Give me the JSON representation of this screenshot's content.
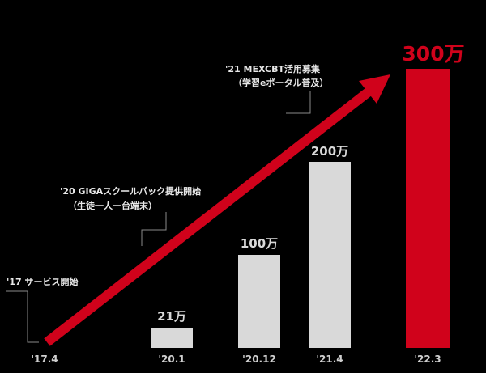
{
  "colors": {
    "background": "#000000",
    "bar": "#d9d9d9",
    "highlight": "#d0021b",
    "text": "#e8e8e8",
    "label": "#cfcfcf"
  },
  "chart_data": {
    "type": "bar",
    "categories": [
      "'17.4",
      "'20.1",
      "'20.12",
      "'21.4",
      "'22.3"
    ],
    "values": [
      0,
      21,
      100,
      200,
      300
    ],
    "value_labels": [
      "",
      "21万",
      "100万",
      "200万",
      "300万"
    ],
    "highlight_index": 4,
    "ylim": [
      0,
      300
    ],
    "grid": false,
    "trend_arrow": true,
    "annotations": [
      {
        "lines": [
          "'17 サービス開始"
        ],
        "category": "'17.4"
      },
      {
        "lines": [
          "'20 GIGAスクールパック提供開始",
          "（生徒一人一台端末）"
        ],
        "category": "'20.1"
      },
      {
        "lines": [
          "'21 MEXCBT活用募集",
          "（学習eポータル普及）"
        ],
        "category": "'21.4"
      }
    ]
  }
}
